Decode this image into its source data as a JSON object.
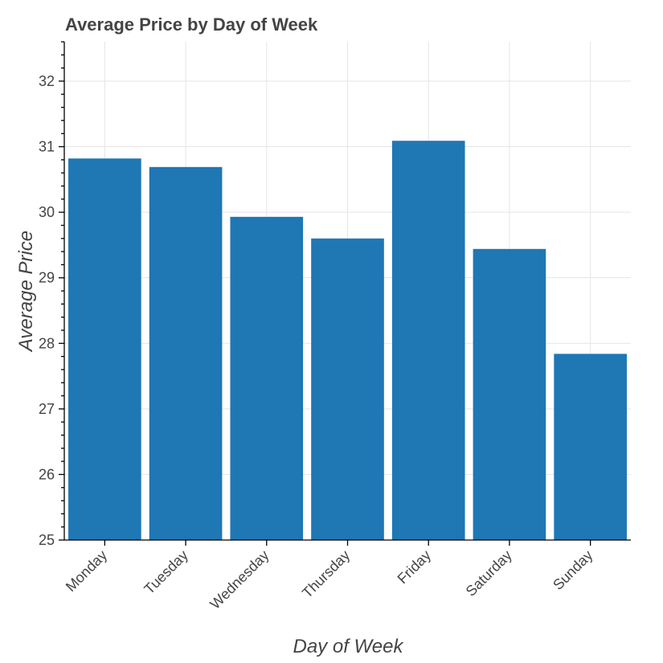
{
  "chart_data": {
    "type": "bar",
    "title": "Average Price by Day of Week",
    "xlabel": "Day of Week",
    "ylabel": "Average Price",
    "categories": [
      "Monday",
      "Tuesday",
      "Wednesday",
      "Thursday",
      "Friday",
      "Saturday",
      "Sunday"
    ],
    "values": [
      30.82,
      30.69,
      29.93,
      29.6,
      31.09,
      29.44,
      27.84
    ],
    "ylim": [
      25,
      32.6
    ],
    "yticks": [
      25,
      26,
      27,
      28,
      29,
      30,
      31,
      32
    ],
    "ytick_labels": [
      "25",
      "26",
      "27",
      "28",
      "29",
      "30",
      "31",
      "32"
    ],
    "bar_color": "#1f77b4",
    "grid": true,
    "x_tick_rotation_deg": -45
  }
}
